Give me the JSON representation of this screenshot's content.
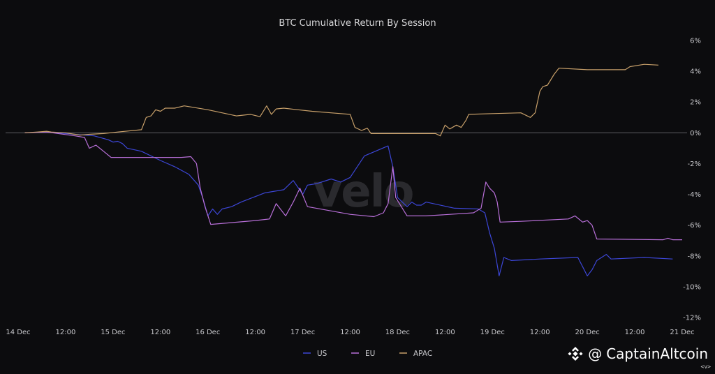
{
  "chart_data": {
    "type": "line",
    "title": "BTC Cumulative Return By Session",
    "watermark": "velo",
    "x_ticks": [
      "14 Dec",
      "12:00",
      "15 Dec",
      "12:00",
      "16 Dec",
      "12:00",
      "17 Dec",
      "12:00",
      "18 Dec",
      "12:00",
      "19 Dec",
      "12:00",
      "20 Dec",
      "12:00",
      "21 Dec"
    ],
    "xlim": [
      0,
      7
    ],
    "y_ticks": [
      "6%",
      "4%",
      "2%",
      "0%",
      "-2%",
      "-4%",
      "-6%",
      "-8%",
      "-10%",
      "-12%"
    ],
    "ylim": [
      -12,
      6
    ],
    "zero_line": true,
    "grid": false,
    "legend_position": "bottom-center",
    "series": [
      {
        "name": "US",
        "color": "#3c46d6",
        "points": [
          [
            0.07,
            0
          ],
          [
            0.3,
            0.05
          ],
          [
            0.6,
            -0.1
          ],
          [
            0.8,
            -0.2
          ],
          [
            0.95,
            -0.45
          ],
          [
            1.0,
            -0.6
          ],
          [
            1.05,
            -0.55
          ],
          [
            1.1,
            -0.7
          ],
          [
            1.15,
            -1.0
          ],
          [
            1.3,
            -1.2
          ],
          [
            1.5,
            -1.8
          ],
          [
            1.65,
            -2.2
          ],
          [
            1.8,
            -2.7
          ],
          [
            1.9,
            -3.4
          ],
          [
            1.95,
            -4.3
          ],
          [
            2.0,
            -5.4
          ],
          [
            2.05,
            -4.95
          ],
          [
            2.1,
            -5.3
          ],
          [
            2.15,
            -4.95
          ],
          [
            2.25,
            -4.8
          ],
          [
            2.35,
            -4.5
          ],
          [
            2.6,
            -3.9
          ],
          [
            2.8,
            -3.7
          ],
          [
            2.9,
            -3.1
          ],
          [
            3.0,
            -4.0
          ],
          [
            3.05,
            -3.4
          ],
          [
            3.15,
            -3.3
          ],
          [
            3.3,
            -3.0
          ],
          [
            3.4,
            -3.2
          ],
          [
            3.5,
            -2.9
          ],
          [
            3.65,
            -1.5
          ],
          [
            3.9,
            -0.85
          ],
          [
            3.95,
            -2.2
          ],
          [
            4.0,
            -4.2
          ],
          [
            4.1,
            -4.8
          ],
          [
            4.15,
            -4.5
          ],
          [
            4.2,
            -4.7
          ],
          [
            4.25,
            -4.7
          ],
          [
            4.3,
            -4.5
          ],
          [
            4.6,
            -4.9
          ],
          [
            4.85,
            -4.95
          ],
          [
            4.92,
            -5.2
          ],
          [
            4.97,
            -6.5
          ],
          [
            5.02,
            -7.5
          ],
          [
            5.07,
            -9.3
          ],
          [
            5.12,
            -8.1
          ],
          [
            5.2,
            -8.3
          ],
          [
            5.5,
            -8.2
          ],
          [
            5.9,
            -8.1
          ],
          [
            5.95,
            -8.7
          ],
          [
            6.0,
            -9.3
          ],
          [
            6.05,
            -8.9
          ],
          [
            6.1,
            -8.3
          ],
          [
            6.2,
            -7.9
          ],
          [
            6.25,
            -8.2
          ],
          [
            6.6,
            -8.1
          ],
          [
            6.9,
            -8.2
          ]
        ]
      },
      {
        "name": "EU",
        "color": "#b86fd8",
        "points": [
          [
            0.07,
            0
          ],
          [
            0.3,
            0.05
          ],
          [
            0.6,
            -0.2
          ],
          [
            0.7,
            -0.3
          ],
          [
            0.75,
            -1.0
          ],
          [
            0.82,
            -0.8
          ],
          [
            0.9,
            -1.2
          ],
          [
            0.98,
            -1.6
          ],
          [
            1.3,
            -1.6
          ],
          [
            1.72,
            -1.6
          ],
          [
            1.82,
            -1.55
          ],
          [
            1.88,
            -2.0
          ],
          [
            1.92,
            -3.6
          ],
          [
            1.97,
            -4.8
          ],
          [
            2.03,
            -5.95
          ],
          [
            2.5,
            -5.7
          ],
          [
            2.65,
            -5.6
          ],
          [
            2.72,
            -4.6
          ],
          [
            2.82,
            -5.4
          ],
          [
            2.9,
            -4.5
          ],
          [
            2.97,
            -3.6
          ],
          [
            3.05,
            -4.8
          ],
          [
            3.5,
            -5.3
          ],
          [
            3.75,
            -5.45
          ],
          [
            3.85,
            -5.2
          ],
          [
            3.9,
            -4.6
          ],
          [
            3.95,
            -2.2
          ],
          [
            3.98,
            -4.2
          ],
          [
            4.05,
            -4.9
          ],
          [
            4.1,
            -5.4
          ],
          [
            4.3,
            -5.4
          ],
          [
            4.8,
            -5.2
          ],
          [
            4.88,
            -4.9
          ],
          [
            4.93,
            -3.2
          ],
          [
            4.97,
            -3.6
          ],
          [
            5.02,
            -3.9
          ],
          [
            5.05,
            -4.5
          ],
          [
            5.08,
            -5.8
          ],
          [
            5.3,
            -5.75
          ],
          [
            5.8,
            -5.6
          ],
          [
            5.87,
            -5.4
          ],
          [
            5.95,
            -5.8
          ],
          [
            6.0,
            -5.7
          ],
          [
            6.05,
            -6.0
          ],
          [
            6.1,
            -6.9
          ],
          [
            6.8,
            -6.95
          ],
          [
            6.85,
            -6.85
          ],
          [
            6.9,
            -6.95
          ],
          [
            7.0,
            -6.95
          ]
        ]
      },
      {
        "name": "APAC",
        "color": "#c8a06a",
        "points": [
          [
            0.07,
            0
          ],
          [
            0.2,
            0.05
          ],
          [
            0.3,
            0.1
          ],
          [
            0.35,
            0.05
          ],
          [
            0.5,
            0
          ],
          [
            0.65,
            -0.15
          ],
          [
            0.75,
            -0.1
          ],
          [
            0.9,
            -0.05
          ],
          [
            1.05,
            0.05
          ],
          [
            1.3,
            0.2
          ],
          [
            1.35,
            1.0
          ],
          [
            1.4,
            1.1
          ],
          [
            1.45,
            1.5
          ],
          [
            1.5,
            1.4
          ],
          [
            1.55,
            1.6
          ],
          [
            1.65,
            1.6
          ],
          [
            1.75,
            1.75
          ],
          [
            2.0,
            1.5
          ],
          [
            2.3,
            1.1
          ],
          [
            2.45,
            1.2
          ],
          [
            2.55,
            1.05
          ],
          [
            2.62,
            1.75
          ],
          [
            2.67,
            1.2
          ],
          [
            2.72,
            1.55
          ],
          [
            2.8,
            1.6
          ],
          [
            2.95,
            1.5
          ],
          [
            3.1,
            1.4
          ],
          [
            3.4,
            1.25
          ],
          [
            3.5,
            1.2
          ],
          [
            3.55,
            0.35
          ],
          [
            3.62,
            0.15
          ],
          [
            3.68,
            0.3
          ],
          [
            3.72,
            -0.05
          ],
          [
            3.8,
            -0.05
          ],
          [
            4.2,
            -0.05
          ],
          [
            4.4,
            -0.05
          ],
          [
            4.45,
            -0.2
          ],
          [
            4.5,
            0.5
          ],
          [
            4.55,
            0.25
          ],
          [
            4.62,
            0.5
          ],
          [
            4.67,
            0.35
          ],
          [
            4.72,
            0.8
          ],
          [
            4.75,
            1.2
          ],
          [
            5.0,
            1.25
          ],
          [
            5.3,
            1.3
          ],
          [
            5.4,
            1.0
          ],
          [
            5.45,
            1.3
          ],
          [
            5.5,
            2.7
          ],
          [
            5.53,
            3.0
          ],
          [
            5.58,
            3.1
          ],
          [
            5.65,
            3.8
          ],
          [
            5.7,
            4.2
          ],
          [
            6.0,
            4.1
          ],
          [
            6.4,
            4.1
          ],
          [
            6.45,
            4.3
          ],
          [
            6.6,
            4.45
          ],
          [
            6.75,
            4.4
          ]
        ]
      }
    ]
  },
  "credit": {
    "prefix": "@",
    "handle": "CaptainAltcoin",
    "sub": "<v>"
  },
  "icon": "binance-logo-icon"
}
